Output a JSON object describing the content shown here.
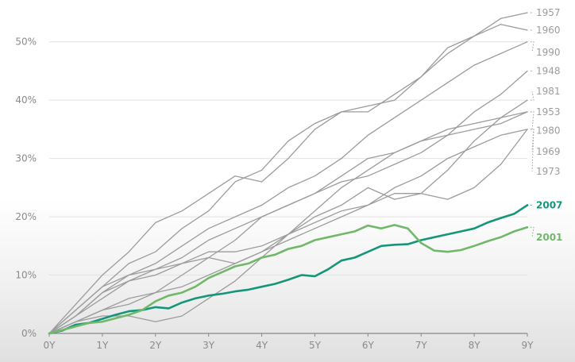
{
  "chart_data": {
    "type": "line",
    "title": "",
    "xlabel": "",
    "ylabel": "",
    "x_ticks": [
      "0Y",
      "1Y",
      "2Y",
      "3Y",
      "4Y",
      "5Y",
      "6Y",
      "7Y",
      "8Y",
      "9Y"
    ],
    "y_ticks": [
      "0%",
      "10%",
      "20%",
      "30%",
      "40%",
      "50%"
    ],
    "xlim": [
      0,
      9
    ],
    "ylim": [
      0,
      55
    ],
    "grid": "horizontal",
    "legend": "direct-labels-right",
    "colors": {
      "gray": "#9c9c9c",
      "highlight_2007": "#15967a",
      "highlight_2001": "#71b86a",
      "axis": "#888888"
    },
    "series": [
      {
        "name": "1957",
        "color": "gray",
        "points": [
          [
            0,
            0
          ],
          [
            0.5,
            5
          ],
          [
            1,
            10
          ],
          [
            1.5,
            14
          ],
          [
            2,
            19
          ],
          [
            2.5,
            21
          ],
          [
            3,
            24
          ],
          [
            3.5,
            27
          ],
          [
            4,
            26
          ],
          [
            4.5,
            30
          ],
          [
            5,
            35
          ],
          [
            5.5,
            38
          ],
          [
            6,
            39
          ],
          [
            6.5,
            40
          ],
          [
            7,
            44
          ],
          [
            7.5,
            48
          ],
          [
            8,
            51
          ],
          [
            8.5,
            54
          ],
          [
            9,
            55
          ]
        ]
      },
      {
        "name": "1960",
        "color": "gray",
        "points": [
          [
            0,
            0
          ],
          [
            0.5,
            4
          ],
          [
            1,
            8
          ],
          [
            1.5,
            12
          ],
          [
            2,
            14
          ],
          [
            2.5,
            18
          ],
          [
            3,
            21
          ],
          [
            3.5,
            26
          ],
          [
            4,
            28
          ],
          [
            4.5,
            33
          ],
          [
            5,
            36
          ],
          [
            5.5,
            38
          ],
          [
            6,
            38
          ],
          [
            6.5,
            41
          ],
          [
            7,
            44
          ],
          [
            7.5,
            49
          ],
          [
            8,
            51
          ],
          [
            8.5,
            53
          ],
          [
            9,
            52
          ]
        ]
      },
      {
        "name": "1990",
        "color": "gray",
        "points": [
          [
            0,
            0
          ],
          [
            0.5,
            3
          ],
          [
            1,
            7
          ],
          [
            1.5,
            10
          ],
          [
            2,
            12
          ],
          [
            2.5,
            15
          ],
          [
            3,
            18
          ],
          [
            3.5,
            20
          ],
          [
            4,
            22
          ],
          [
            4.5,
            25
          ],
          [
            5,
            27
          ],
          [
            5.5,
            30
          ],
          [
            6,
            34
          ],
          [
            6.5,
            37
          ],
          [
            7,
            40
          ],
          [
            7.5,
            43
          ],
          [
            8,
            46
          ],
          [
            8.5,
            48
          ],
          [
            9,
            50
          ]
        ]
      },
      {
        "name": "1948",
        "color": "gray",
        "points": [
          [
            0,
            0
          ],
          [
            0.5,
            2
          ],
          [
            1,
            4
          ],
          [
            1.5,
            5
          ],
          [
            2,
            7
          ],
          [
            2.5,
            10
          ],
          [
            3,
            13
          ],
          [
            3.5,
            16
          ],
          [
            4,
            20
          ],
          [
            4.5,
            22
          ],
          [
            5,
            24
          ],
          [
            5.5,
            26
          ],
          [
            6,
            27
          ],
          [
            6.5,
            29
          ],
          [
            7,
            31
          ],
          [
            7.5,
            34
          ],
          [
            8,
            38
          ],
          [
            8.5,
            41
          ],
          [
            9,
            45
          ]
        ]
      },
      {
        "name": "1981",
        "color": "gray",
        "points": [
          [
            0,
            0
          ],
          [
            0.5,
            2
          ],
          [
            1,
            3
          ],
          [
            1.5,
            3
          ],
          [
            2,
            2
          ],
          [
            2.5,
            3
          ],
          [
            3,
            6
          ],
          [
            3.5,
            9
          ],
          [
            4,
            13
          ],
          [
            4.5,
            17
          ],
          [
            5,
            20
          ],
          [
            5.5,
            22
          ],
          [
            6,
            25
          ],
          [
            6.5,
            23
          ],
          [
            7,
            24
          ],
          [
            7.5,
            28
          ],
          [
            8,
            33
          ],
          [
            8.5,
            37
          ],
          [
            9,
            40
          ]
        ]
      },
      {
        "name": "1953",
        "color": "gray",
        "points": [
          [
            0,
            0
          ],
          [
            0.5,
            4
          ],
          [
            1,
            8
          ],
          [
            1.5,
            10
          ],
          [
            2,
            11
          ],
          [
            2.5,
            13
          ],
          [
            3,
            16
          ],
          [
            3.5,
            18
          ],
          [
            4,
            20
          ],
          [
            4.5,
            22
          ],
          [
            5,
            24
          ],
          [
            5.5,
            27
          ],
          [
            6,
            30
          ],
          [
            6.5,
            31
          ],
          [
            7,
            33
          ],
          [
            7.5,
            35
          ],
          [
            8,
            36
          ],
          [
            8.5,
            37
          ],
          [
            9,
            38
          ]
        ]
      },
      {
        "name": "1980",
        "color": "gray",
        "points": [
          [
            0,
            0
          ],
          [
            0.5,
            3
          ],
          [
            1,
            6
          ],
          [
            1.5,
            9
          ],
          [
            2,
            11
          ],
          [
            2.5,
            12
          ],
          [
            3,
            13
          ],
          [
            3.5,
            12
          ],
          [
            4,
            14
          ],
          [
            4.5,
            17
          ],
          [
            5,
            21
          ],
          [
            5.5,
            25
          ],
          [
            6,
            28
          ],
          [
            6.5,
            31
          ],
          [
            7,
            33
          ],
          [
            7.5,
            34
          ],
          [
            8,
            35
          ],
          [
            8.5,
            36
          ],
          [
            9,
            38
          ]
        ]
      },
      {
        "name": "1969",
        "color": "gray",
        "points": [
          [
            0,
            0
          ],
          [
            0.5,
            2
          ],
          [
            1,
            4
          ],
          [
            1.5,
            6
          ],
          [
            2,
            7
          ],
          [
            2.5,
            8
          ],
          [
            3,
            10
          ],
          [
            3.5,
            12
          ],
          [
            4,
            14
          ],
          [
            4.5,
            16
          ],
          [
            5,
            18
          ],
          [
            5.5,
            20
          ],
          [
            6,
            22
          ],
          [
            6.5,
            25
          ],
          [
            7,
            27
          ],
          [
            7.5,
            30
          ],
          [
            8,
            32
          ],
          [
            8.5,
            34
          ],
          [
            9,
            35
          ]
        ]
      },
      {
        "name": "1973",
        "color": "gray",
        "points": [
          [
            0,
            0
          ],
          [
            0.5,
            3
          ],
          [
            1,
            7
          ],
          [
            1.5,
            9
          ],
          [
            2,
            10
          ],
          [
            2.5,
            12
          ],
          [
            3,
            14
          ],
          [
            3.5,
            14
          ],
          [
            4,
            15
          ],
          [
            4.5,
            17
          ],
          [
            5,
            19
          ],
          [
            5.5,
            21
          ],
          [
            6,
            22
          ],
          [
            6.5,
            24
          ],
          [
            7,
            24
          ],
          [
            7.5,
            23
          ],
          [
            8,
            25
          ],
          [
            8.5,
            29
          ],
          [
            9,
            35
          ]
        ]
      },
      {
        "name": "2007",
        "color": "highlight_2007",
        "points": [
          [
            0,
            0
          ],
          [
            0.25,
            0.5
          ],
          [
            0.5,
            1.5
          ],
          [
            0.75,
            1.8
          ],
          [
            1,
            2.5
          ],
          [
            1.25,
            3.2
          ],
          [
            1.5,
            3.8
          ],
          [
            1.75,
            4
          ],
          [
            2,
            4.5
          ],
          [
            2.25,
            4.3
          ],
          [
            2.5,
            5.3
          ],
          [
            2.75,
            6
          ],
          [
            3,
            6.5
          ],
          [
            3.25,
            6.8
          ],
          [
            3.5,
            7.2
          ],
          [
            3.75,
            7.5
          ],
          [
            4,
            8
          ],
          [
            4.25,
            8.5
          ],
          [
            4.5,
            9.2
          ],
          [
            4.75,
            10
          ],
          [
            5,
            9.8
          ],
          [
            5.25,
            11
          ],
          [
            5.5,
            12.5
          ],
          [
            5.75,
            13
          ],
          [
            6,
            14
          ],
          [
            6.25,
            15
          ],
          [
            6.5,
            15.2
          ],
          [
            6.75,
            15.3
          ],
          [
            7,
            16
          ],
          [
            7.25,
            16.5
          ],
          [
            7.5,
            17
          ],
          [
            7.75,
            17.5
          ],
          [
            8,
            18
          ],
          [
            8.25,
            19
          ],
          [
            8.5,
            19.8
          ],
          [
            8.75,
            20.5
          ],
          [
            9,
            22
          ]
        ]
      },
      {
        "name": "2001",
        "color": "highlight_2001",
        "points": [
          [
            0,
            0
          ],
          [
            0.25,
            0.6
          ],
          [
            0.5,
            1.2
          ],
          [
            0.75,
            1.8
          ],
          [
            1,
            2
          ],
          [
            1.25,
            2.6
          ],
          [
            1.5,
            3.2
          ],
          [
            1.75,
            4
          ],
          [
            2,
            5.5
          ],
          [
            2.25,
            6.5
          ],
          [
            2.5,
            7
          ],
          [
            2.75,
            8
          ],
          [
            3,
            9.5
          ],
          [
            3.25,
            10.5
          ],
          [
            3.5,
            11.5
          ],
          [
            3.75,
            12
          ],
          [
            4,
            13
          ],
          [
            4.25,
            13.5
          ],
          [
            4.5,
            14.5
          ],
          [
            4.75,
            15
          ],
          [
            5,
            16
          ],
          [
            5.25,
            16.5
          ],
          [
            5.5,
            17
          ],
          [
            5.75,
            17.5
          ],
          [
            6,
            18.5
          ],
          [
            6.25,
            18
          ],
          [
            6.5,
            18.6
          ],
          [
            6.75,
            18
          ],
          [
            7,
            15.5
          ],
          [
            7.25,
            14.2
          ],
          [
            7.5,
            14
          ],
          [
            7.75,
            14.3
          ],
          [
            8,
            15
          ],
          [
            8.25,
            15.8
          ],
          [
            8.5,
            16.5
          ],
          [
            8.75,
            17.5
          ],
          [
            9,
            18.2
          ]
        ]
      }
    ],
    "end_labels": [
      {
        "name": "1957",
        "value": 55,
        "color": "gray",
        "dotted": false
      },
      {
        "name": "1960",
        "value": 52,
        "color": "gray",
        "dotted": false
      },
      {
        "name": "1990",
        "value": 48.2,
        "color": "gray",
        "dotted": true
      },
      {
        "name": "1948",
        "value": 45,
        "color": "gray",
        "dotted": false
      },
      {
        "name": "1981",
        "value": 41.5,
        "color": "gray",
        "dotted": true
      },
      {
        "name": "1953",
        "value": 38,
        "color": "gray",
        "dotted": false
      },
      {
        "name": "1980",
        "value": 34.8,
        "color": "gray",
        "dotted": true
      },
      {
        "name": "1969",
        "value": 31.2,
        "color": "gray",
        "dotted": true
      },
      {
        "name": "1973",
        "value": 27.8,
        "color": "gray",
        "dotted": true
      },
      {
        "name": "2007",
        "value": 22,
        "color": "highlight_2007",
        "dotted": false
      },
      {
        "name": "2001",
        "value": 16.5,
        "color": "highlight_2001",
        "dotted": true
      }
    ]
  }
}
